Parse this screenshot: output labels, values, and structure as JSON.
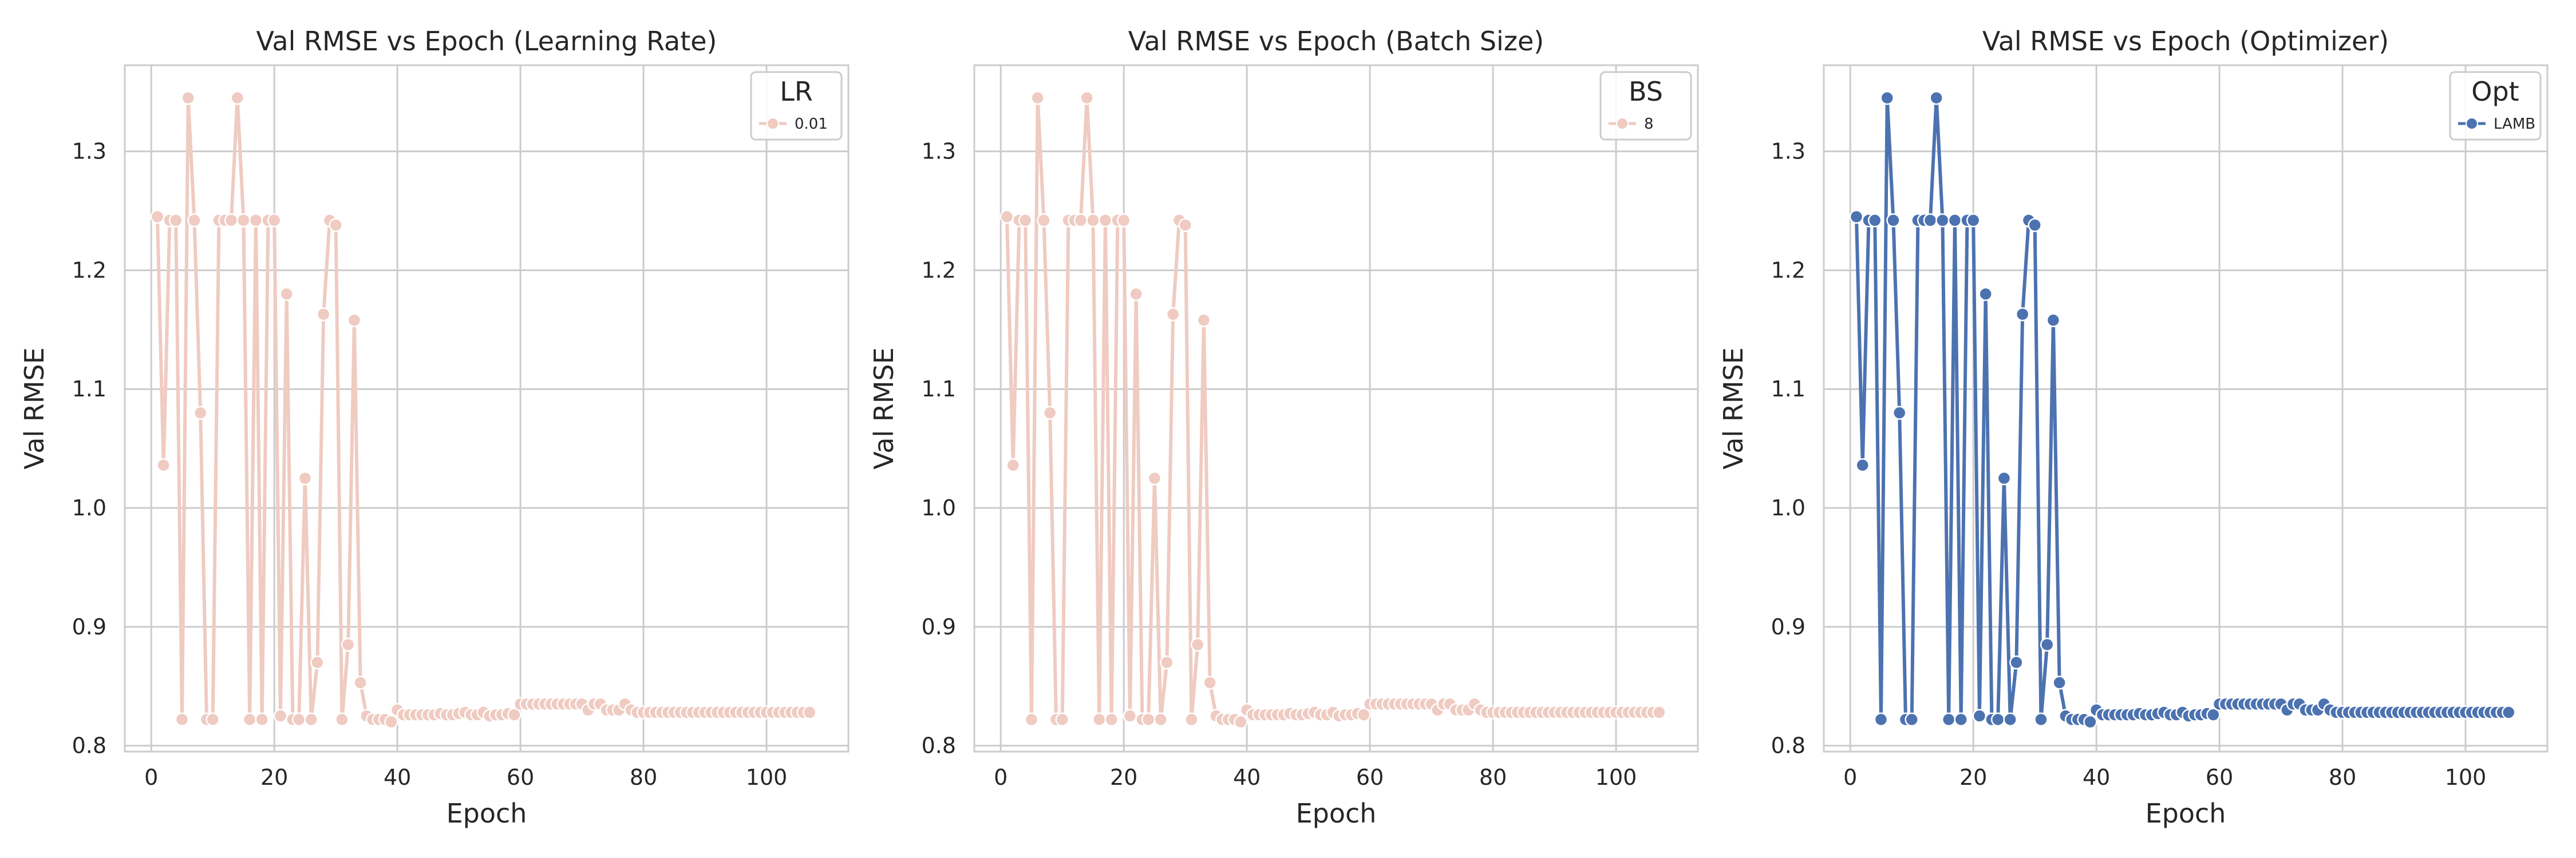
{
  "chart_data": [
    {
      "type": "line",
      "title": "Val RMSE vs Epoch (Learning Rate)",
      "xlabel": "Epoch",
      "ylabel": "Val RMSE",
      "xlim": [
        -4.3,
        113.3
      ],
      "ylim": [
        0.795,
        1.3725
      ],
      "xticks": [
        0,
        20,
        40,
        60,
        80,
        100
      ],
      "yticks": [
        0.8,
        0.9,
        1.0,
        1.1,
        1.2,
        1.3
      ],
      "ytick_labels": [
        "0.8",
        "0.9",
        "1.0",
        "1.1",
        "1.2",
        "1.3"
      ],
      "grid": true,
      "legend": {
        "title": "LR",
        "position": "top-right"
      },
      "series": [
        {
          "name": "0.01",
          "color": "#efcbc1",
          "marker": "circle",
          "x": [
            1,
            2,
            3,
            4,
            5,
            6,
            7,
            8,
            9,
            10,
            11,
            12,
            13,
            14,
            15,
            16,
            17,
            18,
            19,
            20,
            21,
            22,
            23,
            24,
            25,
            26,
            27,
            28,
            29,
            30,
            31,
            32,
            33,
            34,
            35,
            36,
            37,
            38,
            39,
            40,
            41,
            42,
            43,
            44,
            45,
            46,
            47,
            48,
            49,
            50,
            51,
            52,
            53,
            54,
            55,
            56,
            57,
            58,
            59,
            60,
            61,
            62,
            63,
            64,
            65,
            66,
            67,
            68,
            69,
            70,
            71,
            72,
            73,
            74,
            75,
            76,
            77,
            78,
            79,
            80,
            81,
            82,
            83,
            84,
            85,
            86,
            87,
            88,
            89,
            90,
            91,
            92,
            93,
            94,
            95,
            96,
            97,
            98,
            99,
            100,
            101,
            102,
            103,
            104,
            105,
            106,
            107
          ],
          "y": [
            1.245,
            1.036,
            1.242,
            1.242,
            0.822,
            1.345,
            1.242,
            1.08,
            0.822,
            0.822,
            1.242,
            1.242,
            1.242,
            1.345,
            1.242,
            0.822,
            1.242,
            0.822,
            1.242,
            1.242,
            0.825,
            1.18,
            0.822,
            0.822,
            1.025,
            0.822,
            0.87,
            1.163,
            1.242,
            1.238,
            0.822,
            0.885,
            1.158,
            0.853,
            0.825,
            0.822,
            0.822,
            0.822,
            0.82,
            0.83,
            0.826,
            0.826,
            0.826,
            0.826,
            0.826,
            0.826,
            0.827,
            0.826,
            0.826,
            0.827,
            0.828,
            0.826,
            0.826,
            0.828,
            0.825,
            0.826,
            0.826,
            0.827,
            0.826,
            0.835,
            0.835,
            0.835,
            0.835,
            0.835,
            0.835,
            0.835,
            0.835,
            0.835,
            0.835,
            0.835,
            0.83,
            0.835,
            0.835,
            0.83,
            0.83,
            0.83,
            0.835,
            0.83,
            0.828,
            0.828,
            0.828,
            0.828,
            0.828,
            0.828,
            0.828,
            0.828,
            0.828,
            0.828,
            0.828,
            0.828,
            0.828,
            0.828,
            0.828,
            0.828,
            0.828,
            0.828,
            0.828,
            0.828,
            0.828,
            0.828,
            0.828,
            0.828,
            0.828,
            0.828,
            0.828,
            0.828,
            0.828
          ]
        }
      ]
    },
    {
      "type": "line",
      "title": "Val RMSE vs Epoch (Batch Size)",
      "xlabel": "Epoch",
      "ylabel": "Val RMSE",
      "xlim": [
        -4.3,
        113.3
      ],
      "ylim": [
        0.795,
        1.3725
      ],
      "xticks": [
        0,
        20,
        40,
        60,
        80,
        100
      ],
      "yticks": [
        0.8,
        0.9,
        1.0,
        1.1,
        1.2,
        1.3
      ],
      "ytick_labels": [
        "0.8",
        "0.9",
        "1.0",
        "1.1",
        "1.2",
        "1.3"
      ],
      "grid": true,
      "legend": {
        "title": "BS",
        "position": "top-right"
      },
      "series": [
        {
          "name": "8",
          "color": "#efcbc1",
          "marker": "circle",
          "x": [
            1,
            2,
            3,
            4,
            5,
            6,
            7,
            8,
            9,
            10,
            11,
            12,
            13,
            14,
            15,
            16,
            17,
            18,
            19,
            20,
            21,
            22,
            23,
            24,
            25,
            26,
            27,
            28,
            29,
            30,
            31,
            32,
            33,
            34,
            35,
            36,
            37,
            38,
            39,
            40,
            41,
            42,
            43,
            44,
            45,
            46,
            47,
            48,
            49,
            50,
            51,
            52,
            53,
            54,
            55,
            56,
            57,
            58,
            59,
            60,
            61,
            62,
            63,
            64,
            65,
            66,
            67,
            68,
            69,
            70,
            71,
            72,
            73,
            74,
            75,
            76,
            77,
            78,
            79,
            80,
            81,
            82,
            83,
            84,
            85,
            86,
            87,
            88,
            89,
            90,
            91,
            92,
            93,
            94,
            95,
            96,
            97,
            98,
            99,
            100,
            101,
            102,
            103,
            104,
            105,
            106,
            107
          ],
          "y": [
            1.245,
            1.036,
            1.242,
            1.242,
            0.822,
            1.345,
            1.242,
            1.08,
            0.822,
            0.822,
            1.242,
            1.242,
            1.242,
            1.345,
            1.242,
            0.822,
            1.242,
            0.822,
            1.242,
            1.242,
            0.825,
            1.18,
            0.822,
            0.822,
            1.025,
            0.822,
            0.87,
            1.163,
            1.242,
            1.238,
            0.822,
            0.885,
            1.158,
            0.853,
            0.825,
            0.822,
            0.822,
            0.822,
            0.82,
            0.83,
            0.826,
            0.826,
            0.826,
            0.826,
            0.826,
            0.826,
            0.827,
            0.826,
            0.826,
            0.827,
            0.828,
            0.826,
            0.826,
            0.828,
            0.825,
            0.826,
            0.826,
            0.827,
            0.826,
            0.835,
            0.835,
            0.835,
            0.835,
            0.835,
            0.835,
            0.835,
            0.835,
            0.835,
            0.835,
            0.835,
            0.83,
            0.835,
            0.835,
            0.83,
            0.83,
            0.83,
            0.835,
            0.83,
            0.828,
            0.828,
            0.828,
            0.828,
            0.828,
            0.828,
            0.828,
            0.828,
            0.828,
            0.828,
            0.828,
            0.828,
            0.828,
            0.828,
            0.828,
            0.828,
            0.828,
            0.828,
            0.828,
            0.828,
            0.828,
            0.828,
            0.828,
            0.828,
            0.828,
            0.828,
            0.828,
            0.828,
            0.828
          ]
        }
      ]
    },
    {
      "type": "line",
      "title": "Val RMSE vs Epoch (Optimizer)",
      "xlabel": "Epoch",
      "ylabel": "Val RMSE",
      "xlim": [
        -4.3,
        113.3
      ],
      "ylim": [
        0.795,
        1.3725
      ],
      "xticks": [
        0,
        20,
        40,
        60,
        80,
        100
      ],
      "yticks": [
        0.8,
        0.9,
        1.0,
        1.1,
        1.2,
        1.3
      ],
      "ytick_labels": [
        "0.8",
        "0.9",
        "1.0",
        "1.1",
        "1.2",
        "1.3"
      ],
      "grid": true,
      "legend": {
        "title": "Opt",
        "position": "top-right"
      },
      "series": [
        {
          "name": "LAMB",
          "color": "#4c72b0",
          "marker": "circle",
          "x": [
            1,
            2,
            3,
            4,
            5,
            6,
            7,
            8,
            9,
            10,
            11,
            12,
            13,
            14,
            15,
            16,
            17,
            18,
            19,
            20,
            21,
            22,
            23,
            24,
            25,
            26,
            27,
            28,
            29,
            30,
            31,
            32,
            33,
            34,
            35,
            36,
            37,
            38,
            39,
            40,
            41,
            42,
            43,
            44,
            45,
            46,
            47,
            48,
            49,
            50,
            51,
            52,
            53,
            54,
            55,
            56,
            57,
            58,
            59,
            60,
            61,
            62,
            63,
            64,
            65,
            66,
            67,
            68,
            69,
            70,
            71,
            72,
            73,
            74,
            75,
            76,
            77,
            78,
            79,
            80,
            81,
            82,
            83,
            84,
            85,
            86,
            87,
            88,
            89,
            90,
            91,
            92,
            93,
            94,
            95,
            96,
            97,
            98,
            99,
            100,
            101,
            102,
            103,
            104,
            105,
            106,
            107
          ],
          "y": [
            1.245,
            1.036,
            1.242,
            1.242,
            0.822,
            1.345,
            1.242,
            1.08,
            0.822,
            0.822,
            1.242,
            1.242,
            1.242,
            1.345,
            1.242,
            0.822,
            1.242,
            0.822,
            1.242,
            1.242,
            0.825,
            1.18,
            0.822,
            0.822,
            1.025,
            0.822,
            0.87,
            1.163,
            1.242,
            1.238,
            0.822,
            0.885,
            1.158,
            0.853,
            0.825,
            0.822,
            0.822,
            0.822,
            0.82,
            0.83,
            0.826,
            0.826,
            0.826,
            0.826,
            0.826,
            0.826,
            0.827,
            0.826,
            0.826,
            0.827,
            0.828,
            0.826,
            0.826,
            0.828,
            0.825,
            0.826,
            0.826,
            0.827,
            0.826,
            0.835,
            0.835,
            0.835,
            0.835,
            0.835,
            0.835,
            0.835,
            0.835,
            0.835,
            0.835,
            0.835,
            0.83,
            0.835,
            0.835,
            0.83,
            0.83,
            0.83,
            0.835,
            0.83,
            0.828,
            0.828,
            0.828,
            0.828,
            0.828,
            0.828,
            0.828,
            0.828,
            0.828,
            0.828,
            0.828,
            0.828,
            0.828,
            0.828,
            0.828,
            0.828,
            0.828,
            0.828,
            0.828,
            0.828,
            0.828,
            0.828,
            0.828,
            0.828,
            0.828,
            0.828,
            0.828,
            0.828,
            0.828
          ]
        }
      ]
    }
  ]
}
